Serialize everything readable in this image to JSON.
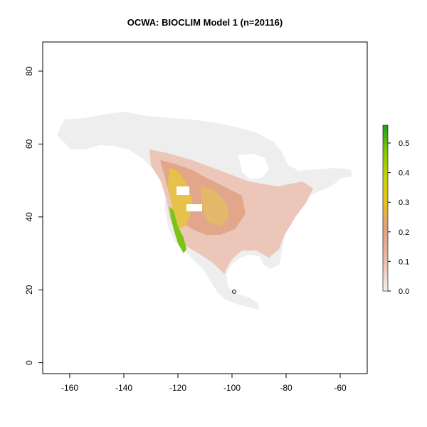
{
  "chart_data": {
    "type": "heatmap",
    "title": "OCWA: BIOCLIM Model 1 (n=20116)",
    "xlabel": "",
    "ylabel": "",
    "x_ticks": [
      -160,
      -140,
      -120,
      -100,
      -80,
      -60
    ],
    "y_ticks": [
      0,
      20,
      40,
      60,
      80
    ],
    "xlim": [
      -170,
      -50
    ],
    "ylim": [
      -3,
      88
    ],
    "colorbar": {
      "min": 0.0,
      "max": 0.56,
      "ticks": [
        "0.0",
        "0.1",
        "0.2",
        "0.3",
        "0.4",
        "0.5"
      ],
      "colors": [
        "#f2f2f2",
        "#e9b9a8",
        "#e0a080",
        "#e8c020",
        "#c8d400",
        "#7cc800",
        "#1fa01f"
      ]
    },
    "point": {
      "lon": -99.2,
      "lat": 19.5
    },
    "colors": {
      "land_base": "#eeeeee",
      "low_suit": "#eac3b5",
      "mid_suit": "#e0a487",
      "high_suit": "#e8c624",
      "top_suit": "#77c414"
    }
  }
}
